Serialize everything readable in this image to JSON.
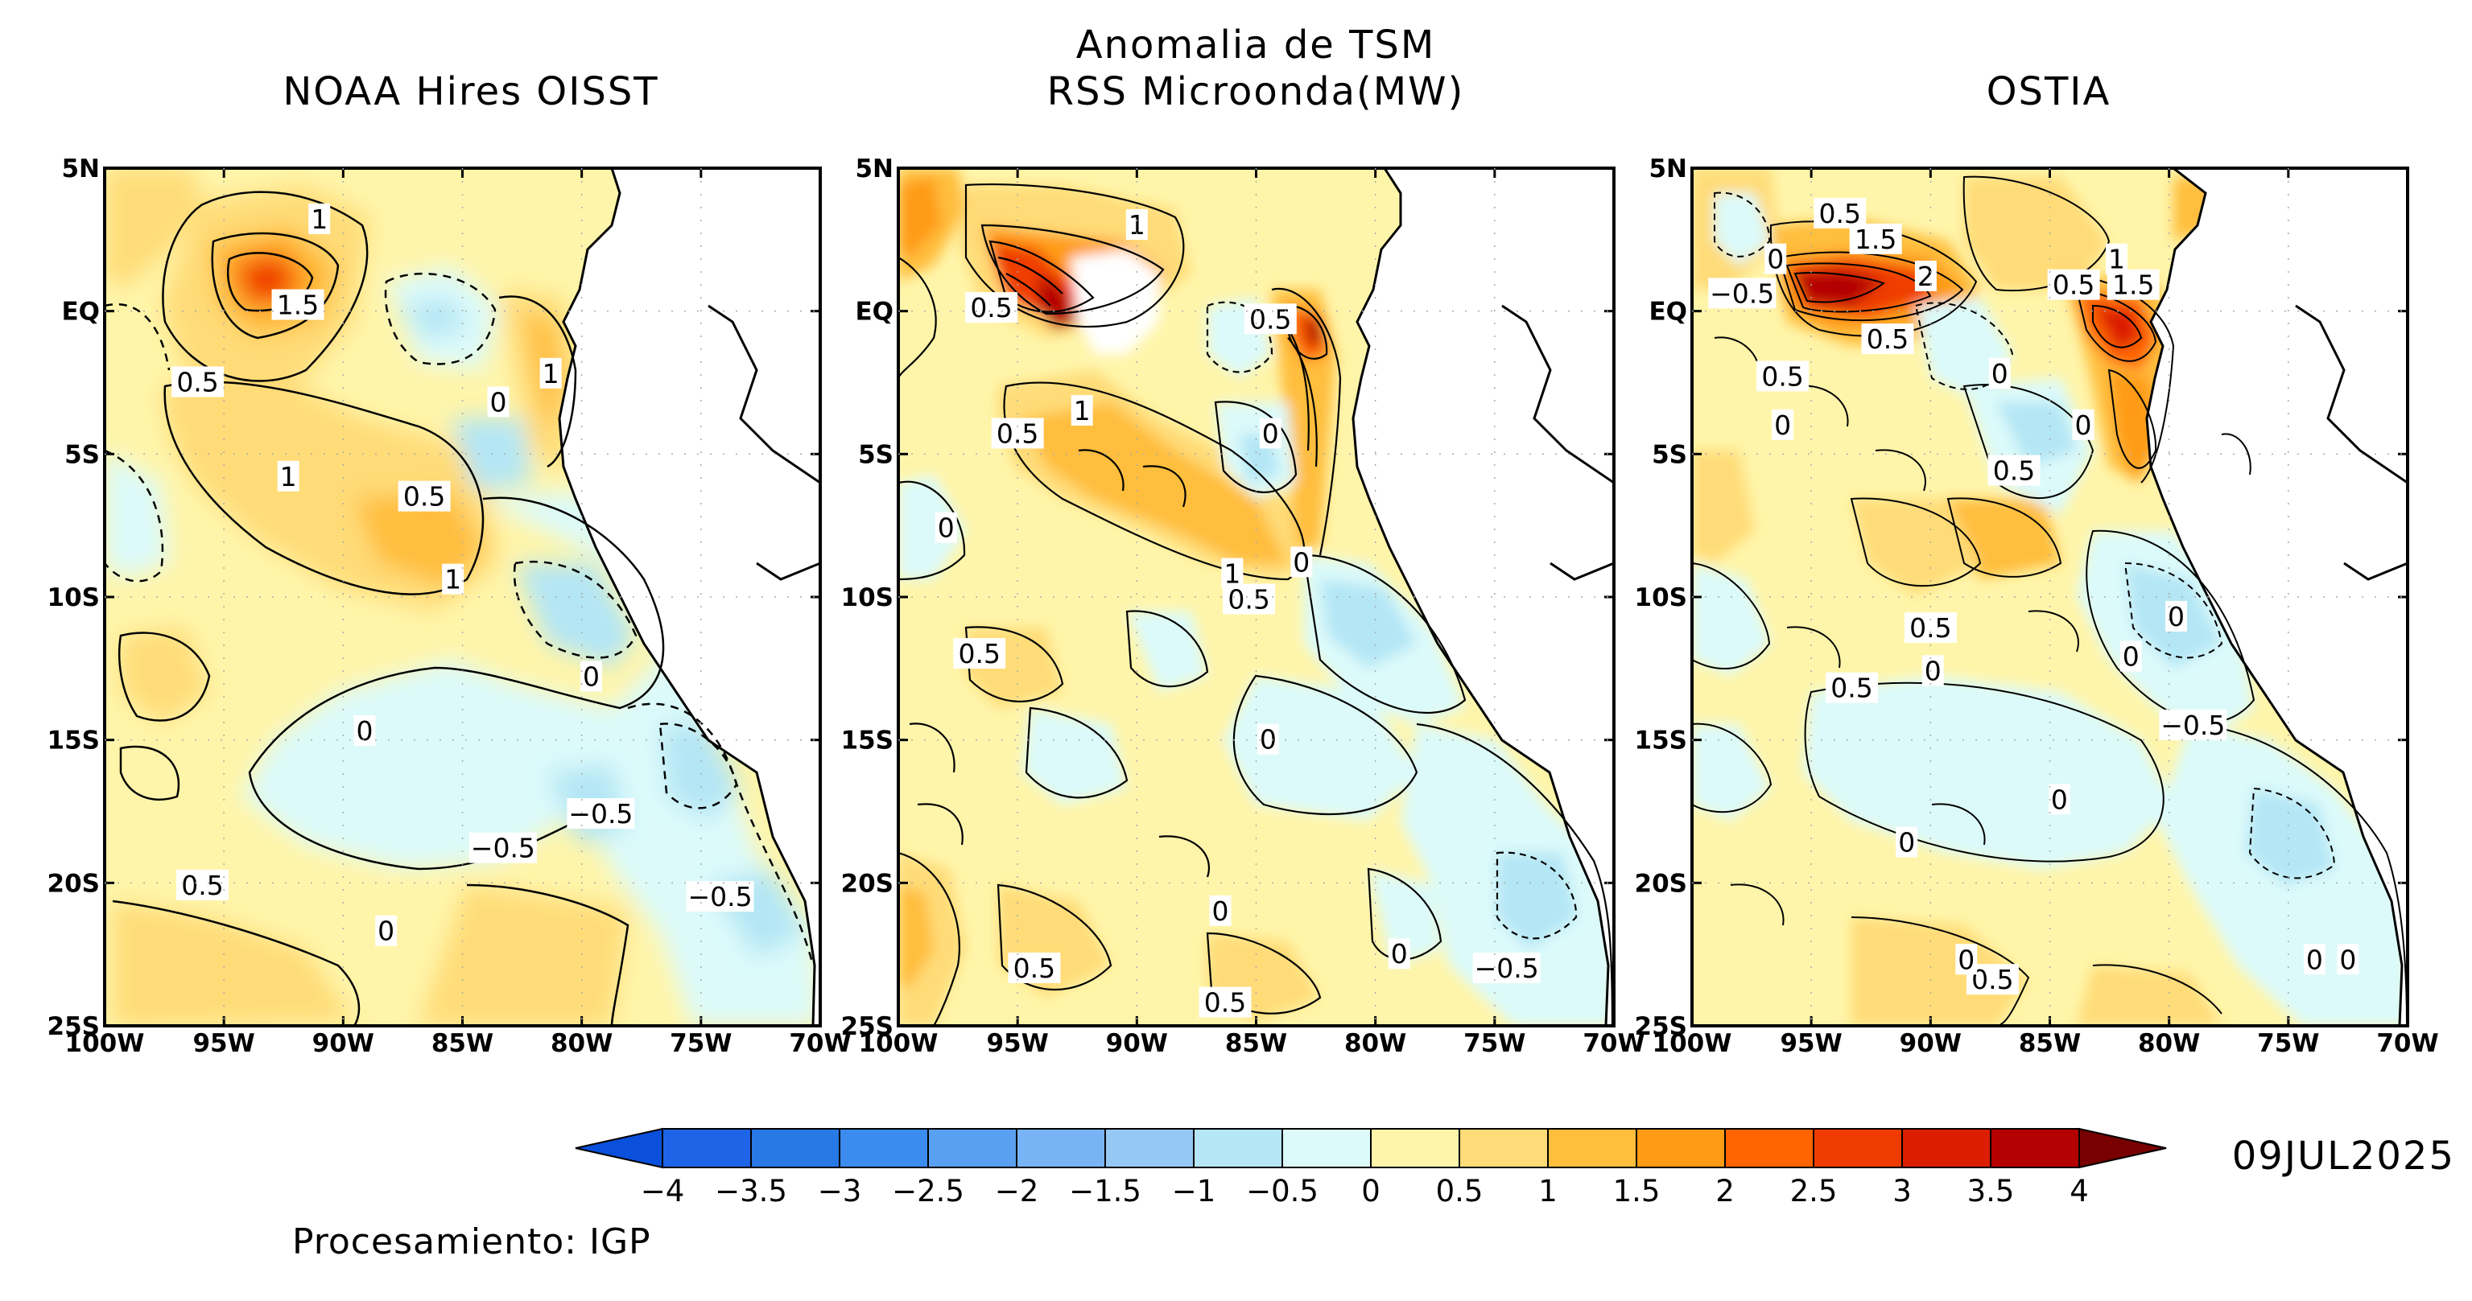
{
  "figure": {
    "top_title": "Anomalia de TSM",
    "date": "09JUL2025",
    "credit": "Procesamiento: IGP"
  },
  "panels": [
    {
      "title": "NOAA Hires OISST",
      "contour_labels": [
        {
          "text": "1",
          "lon": -91.0,
          "lat": 3.2
        },
        {
          "text": "1.5",
          "lon": -91.9,
          "lat": 0.2
        },
        {
          "text": "0.5",
          "lon": -96.1,
          "lat": -2.5
        },
        {
          "text": "1",
          "lon": -92.3,
          "lat": -5.8
        },
        {
          "text": "0.5",
          "lon": -86.6,
          "lat": -6.5
        },
        {
          "text": "1",
          "lon": -85.4,
          "lat": -9.4
        },
        {
          "text": "1",
          "lon": -81.3,
          "lat": -2.2
        },
        {
          "text": "0",
          "lon": -83.5,
          "lat": -3.2
        },
        {
          "text": "0",
          "lon": -79.6,
          "lat": -12.8
        },
        {
          "text": "0",
          "lon": -89.1,
          "lat": -14.7
        },
        {
          "text": "-0.5",
          "lon": -83.3,
          "lat": -18.8
        },
        {
          "text": "-0.5",
          "lon": -79.2,
          "lat": -17.6
        },
        {
          "text": "0.5",
          "lon": -95.9,
          "lat": -20.1
        },
        {
          "text": "0",
          "lon": -88.2,
          "lat": -21.7
        },
        {
          "text": "-0.5",
          "lon": -74.2,
          "lat": -20.5
        }
      ]
    },
    {
      "title": "RSS Microonda(MW)",
      "contour_labels": [
        {
          "text": "1",
          "lon": -90.0,
          "lat": 3.0
        },
        {
          "text": "0.5",
          "lon": -96.1,
          "lat": 0.1
        },
        {
          "text": "0.5",
          "lon": -84.4,
          "lat": -0.3
        },
        {
          "text": "1",
          "lon": -92.3,
          "lat": -3.5
        },
        {
          "text": "0.5",
          "lon": -95.0,
          "lat": -4.3
        },
        {
          "text": "0",
          "lon": -84.4,
          "lat": -4.3
        },
        {
          "text": "0",
          "lon": -98.0,
          "lat": -7.6
        },
        {
          "text": "0",
          "lon": -83.1,
          "lat": -8.8
        },
        {
          "text": "1",
          "lon": -86.0,
          "lat": -9.2
        },
        {
          "text": "0.5",
          "lon": -85.3,
          "lat": -10.1
        },
        {
          "text": "0.5",
          "lon": -96.6,
          "lat": -12.0
        },
        {
          "text": "0",
          "lon": -84.5,
          "lat": -15.0
        },
        {
          "text": "0",
          "lon": -86.5,
          "lat": -21.0
        },
        {
          "text": "0",
          "lon": -79.0,
          "lat": -22.5
        },
        {
          "text": "0.5",
          "lon": -94.3,
          "lat": -23.0
        },
        {
          "text": "0.5",
          "lon": -86.3,
          "lat": -24.2
        },
        {
          "text": "-0.5",
          "lon": -74.5,
          "lat": -23.0
        }
      ]
    },
    {
      "title": "OSTIA",
      "contour_labels": [
        {
          "text": "0.5",
          "lon": -93.8,
          "lat": 3.4
        },
        {
          "text": "1.5",
          "lon": -92.3,
          "lat": 2.5
        },
        {
          "text": "0",
          "lon": -96.5,
          "lat": 1.8
        },
        {
          "text": "2",
          "lon": -90.2,
          "lat": 1.2
        },
        {
          "text": "-0.5",
          "lon": -97.9,
          "lat": 0.6
        },
        {
          "text": "0.5",
          "lon": -91.8,
          "lat": -1.0
        },
        {
          "text": "1",
          "lon": -82.2,
          "lat": 1.8
        },
        {
          "text": "0.5",
          "lon": -84.0,
          "lat": 0.9
        },
        {
          "text": "1.5",
          "lon": -81.5,
          "lat": 0.9
        },
        {
          "text": "0.5",
          "lon": -96.2,
          "lat": -2.3
        },
        {
          "text": "0",
          "lon": -87.1,
          "lat": -2.2
        },
        {
          "text": "0",
          "lon": -96.2,
          "lat": -4.0
        },
        {
          "text": "0",
          "lon": -83.6,
          "lat": -4.0
        },
        {
          "text": "0.5",
          "lon": -86.5,
          "lat": -5.6
        },
        {
          "text": "0.5",
          "lon": -90.0,
          "lat": -11.1
        },
        {
          "text": "0",
          "lon": -79.7,
          "lat": -10.7
        },
        {
          "text": "0",
          "lon": -81.6,
          "lat": -12.1
        },
        {
          "text": "0",
          "lon": -89.9,
          "lat": -12.6
        },
        {
          "text": "0.5",
          "lon": -93.3,
          "lat": -13.2
        },
        {
          "text": "-0.5",
          "lon": -79.0,
          "lat": -14.5
        },
        {
          "text": "0",
          "lon": -84.6,
          "lat": -17.1
        },
        {
          "text": "0",
          "lon": -91.0,
          "lat": -18.6
        },
        {
          "text": "0.5",
          "lon": -87.4,
          "lat": -23.4
        },
        {
          "text": "0",
          "lon": -73.9,
          "lat": -22.7
        },
        {
          "text": "0",
          "lon": -72.5,
          "lat": -22.7
        },
        {
          "text": "0",
          "lon": -88.5,
          "lat": -22.7
        }
      ]
    }
  ],
  "axes": {
    "lat_ticks": [
      "5N",
      "EQ",
      "5S",
      "10S",
      "15S",
      "20S",
      "25S"
    ],
    "lon_ticks": [
      "100W",
      "95W",
      "90W",
      "85W",
      "80W",
      "75W",
      "70W"
    ],
    "lat_range": [
      -25,
      5
    ],
    "lon_range": [
      -100,
      -70
    ]
  },
  "colorbar": {
    "ticks": [
      "−4",
      "−3.5",
      "−3",
      "−2.5",
      "−2",
      "−1.5",
      "−1",
      "−0.5",
      "0",
      "0.5",
      "1",
      "1.5",
      "2",
      "2.5",
      "3",
      "3.5",
      "4"
    ],
    "colors": [
      "#1e64e6",
      "#2878e6",
      "#3c8cf0",
      "#5aa0f0",
      "#78b4f5",
      "#96c8f5",
      "#b4e6f5",
      "#dcfafa",
      "#fff5aa",
      "#ffdc78",
      "#ffbe3c",
      "#ff9b14",
      "#ff6400",
      "#f03c00",
      "#dc1e00",
      "#b40000"
    ],
    "under_color": "#0a50dc",
    "over_color": "#780000"
  },
  "colors": {
    "land": "#ffffff",
    "base_sea": "#fff5aa"
  }
}
